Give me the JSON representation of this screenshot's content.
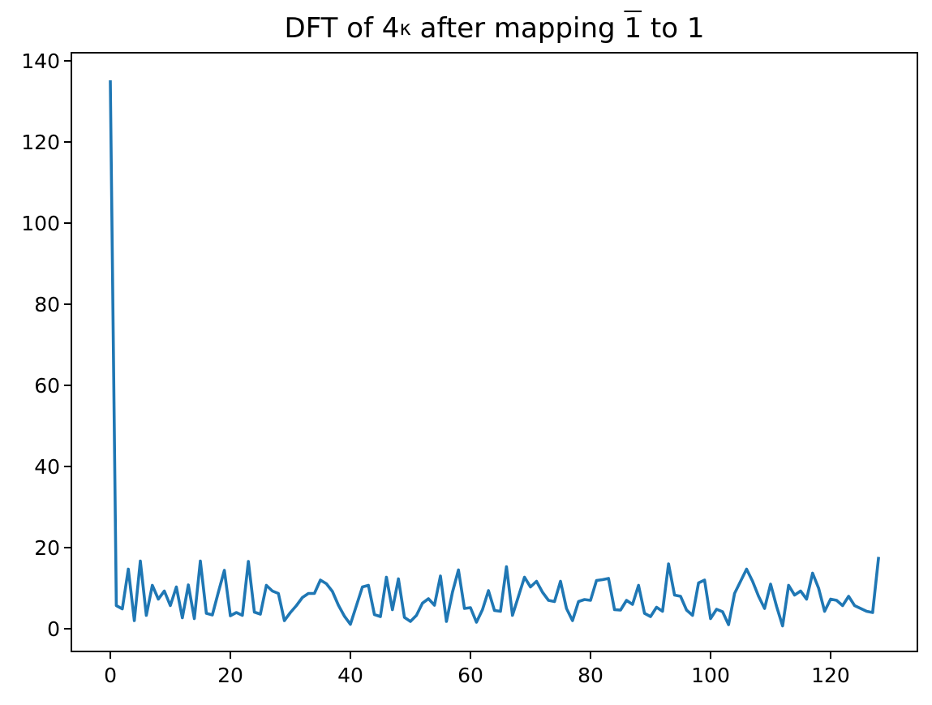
{
  "figure": {
    "title": {
      "prefix": "DFT of 4",
      "subscript": "κ",
      "middle": " after mapping ",
      "overlined": "1",
      "suffix": " to 1"
    }
  },
  "chart_data": {
    "type": "line",
    "title": "DFT of 4_κ after mapping 1̄ to 1",
    "xlabel": "",
    "ylabel": "",
    "x_start": 0,
    "x_step": 1,
    "values": [
      135.2,
      5.7,
      4.9,
      14.7,
      2.0,
      16.7,
      3.3,
      10.7,
      7.3,
      9.3,
      5.7,
      10.3,
      2.7,
      10.8,
      2.5,
      16.7,
      3.8,
      3.4,
      9.0,
      14.4,
      3.2,
      4.0,
      3.3,
      16.6,
      4.1,
      3.6,
      10.7,
      9.3,
      8.7,
      2.0,
      4.0,
      5.7,
      7.7,
      8.7,
      8.7,
      12.0,
      11.1,
      9.2,
      5.8,
      3.1,
      1.1,
      5.7,
      10.3,
      10.7,
      3.5,
      3.0,
      12.7,
      4.7,
      12.3,
      2.8,
      1.8,
      3.3,
      6.3,
      7.4,
      5.8,
      13.0,
      1.8,
      9.0,
      14.5,
      5.0,
      5.2,
      1.6,
      4.7,
      9.4,
      4.5,
      4.3,
      15.3,
      3.3,
      8.0,
      12.7,
      10.3,
      11.7,
      9.0,
      7.0,
      6.7,
      11.7,
      5.0,
      2.0,
      6.7,
      7.2,
      7.0,
      11.9,
      12.1,
      12.4,
      4.7,
      4.6,
      7.0,
      6.0,
      10.7,
      3.8,
      3.0,
      5.3,
      4.3,
      16.0,
      8.3,
      8.0,
      4.6,
      3.3,
      11.3,
      12.0,
      2.5,
      4.8,
      4.2,
      1.0,
      8.7,
      11.7,
      14.7,
      11.7,
      8.0,
      5.0,
      11.0,
      5.5,
      0.7,
      10.7,
      8.3,
      9.3,
      7.3,
      13.7,
      10.0,
      4.3,
      7.3,
      7.0,
      5.7,
      8.0,
      5.7,
      5.0,
      4.3,
      4.0,
      17.7
    ],
    "x_ticks": [
      0,
      20,
      40,
      60,
      80,
      100,
      120
    ],
    "y_ticks": [
      0,
      20,
      40,
      60,
      80,
      100,
      120,
      140
    ],
    "xlim": [
      -6.49,
      134.46
    ],
    "ylim": [
      -5.6,
      142
    ],
    "line_color": "#1f77b4",
    "axis_color": "#000000",
    "background": "#ffffff",
    "grid": false,
    "legend": null
  }
}
